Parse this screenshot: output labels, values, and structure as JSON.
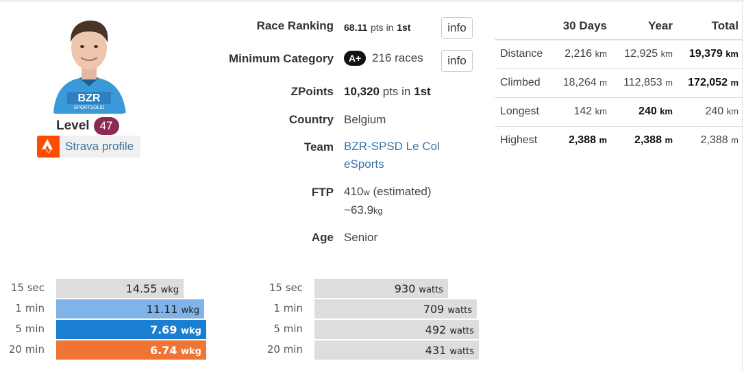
{
  "profile": {
    "level_label": "Level",
    "level_value": "47",
    "strava_label": "Strava profile",
    "avatar_icon": "rider-avatar-icon",
    "jersey_text": "BZR",
    "jersey_subtext": "SPORTSOLID",
    "colors": {
      "level_badge": "#8c2a52",
      "strava": "#fc4c02",
      "link": "#3b73a8"
    }
  },
  "info": {
    "race_ranking": {
      "label": "Race Ranking",
      "pts": "68.11",
      "pts_unit": "pts in",
      "rank": "1st",
      "button": "info"
    },
    "min_category": {
      "label": "Minimum Category",
      "badge": "A+",
      "races": "216 races",
      "button": "info"
    },
    "zpoints": {
      "label": "ZPoints",
      "pts": "10,320",
      "pts_unit": "pts in",
      "rank": "1st"
    },
    "country": {
      "label": "Country",
      "value": "Belgium"
    },
    "team": {
      "label": "Team",
      "line1": "BZR-SPSD Le Col",
      "line2": "eSports"
    },
    "ftp": {
      "label": "FTP",
      "watts": "410",
      "watts_unit": "w",
      "estimated": "(estimated)",
      "weight_prefix": "~",
      "weight": "63.9",
      "weight_unit": "kg"
    },
    "age": {
      "label": "Age",
      "value": "Senior"
    }
  },
  "stats": {
    "headers": [
      "",
      "30 Days",
      "Year",
      "Total"
    ],
    "rows": [
      {
        "label": "Distance",
        "d30": "2,216",
        "d30_unit": "km",
        "year": "12,925",
        "year_unit": "km",
        "total": "19,379",
        "total_unit": "km"
      },
      {
        "label": "Climbed",
        "d30": "18,264",
        "d30_unit": "m",
        "year": "112,853",
        "year_unit": "m",
        "total": "172,052",
        "total_unit": "m"
      },
      {
        "label": "Longest",
        "d30": "142",
        "d30_unit": "km",
        "year": "240",
        "year_unit": "km",
        "total": "240",
        "total_unit": "km"
      },
      {
        "label": "Highest",
        "d30": "2,388",
        "d30_unit": "m",
        "year": "2,388",
        "year_unit": "m",
        "total": "2,388",
        "total_unit": "m"
      }
    ]
  },
  "power_wkg": {
    "unit": "wkg",
    "rows": [
      {
        "label": "15 sec",
        "value": "14.55",
        "fill": 0.62,
        "color": "#dddddd"
      },
      {
        "label": "1 min",
        "value": "11.11",
        "fill": 0.72,
        "color": "#7fb3ea"
      },
      {
        "label": "5 min",
        "value": "7.69",
        "fill": 0.73,
        "color": "#1a7fd1"
      },
      {
        "label": "20 min",
        "value": "6.74",
        "fill": 0.73,
        "color": "#f07535"
      }
    ]
  },
  "power_watts": {
    "unit": "watts",
    "rows": [
      {
        "label": "15 sec",
        "value": "930",
        "fill": 0.65,
        "color": "#dddddd"
      },
      {
        "label": "1 min",
        "value": "709",
        "fill": 0.79,
        "color": "#dddddd"
      },
      {
        "label": "5 min",
        "value": "492",
        "fill": 0.8,
        "color": "#dddddd"
      },
      {
        "label": "20 min",
        "value": "431",
        "fill": 0.8,
        "color": "#dddddd"
      }
    ]
  }
}
